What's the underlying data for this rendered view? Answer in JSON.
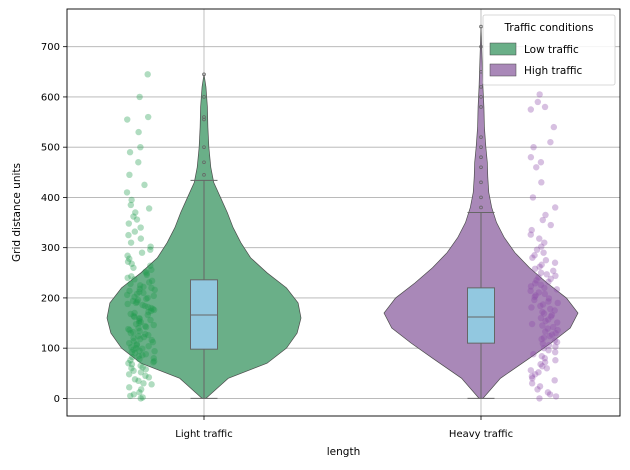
{
  "chart_data": {
    "type": "violin",
    "title": "",
    "xlabel": "length",
    "ylabel": "Grid distance units",
    "categories": [
      "Light traffic",
      "Heavy traffic"
    ],
    "ylim": [
      -35,
      775
    ],
    "yticks": [
      0,
      100,
      200,
      300,
      400,
      500,
      600,
      700
    ],
    "grid": true,
    "legend": {
      "title": "Traffic conditions",
      "placement": "top-right",
      "entries": [
        {
          "label": "Low traffic",
          "color": "#6aaf88"
        },
        {
          "label": "High traffic",
          "color": "#a988b8"
        }
      ]
    },
    "series": [
      {
        "category": "Light traffic",
        "legend_label": "Low traffic",
        "fill": "#6aaf88",
        "point_color": "#1e9a4a",
        "violin_profile": [
          [
            0,
            0.02
          ],
          [
            40,
            0.25
          ],
          [
            70,
            0.65
          ],
          [
            100,
            0.85
          ],
          [
            130,
            0.96
          ],
          [
            160,
            1.0
          ],
          [
            190,
            0.97
          ],
          [
            220,
            0.85
          ],
          [
            250,
            0.65
          ],
          [
            280,
            0.48
          ],
          [
            310,
            0.38
          ],
          [
            340,
            0.3
          ],
          [
            370,
            0.24
          ],
          [
            400,
            0.17
          ],
          [
            430,
            0.1
          ],
          [
            460,
            0.07
          ],
          [
            500,
            0.05
          ],
          [
            540,
            0.04
          ],
          [
            580,
            0.035
          ],
          [
            620,
            0.02
          ],
          [
            645,
            0
          ]
        ],
        "box": {
          "q1": 98,
          "median": 166,
          "q3": 236,
          "whisker_low": 0,
          "whisker_high": 434
        },
        "outliers": [
          445,
          470,
          500,
          555,
          560,
          600,
          645
        ],
        "strip_points": [
          0,
          2,
          5,
          8,
          12,
          18,
          22,
          28,
          30,
          35,
          38,
          42,
          45,
          48,
          52,
          55,
          58,
          60,
          62,
          65,
          68,
          70,
          72,
          74,
          76,
          78,
          80,
          82,
          84,
          86,
          88,
          90,
          92,
          94,
          95,
          97,
          99,
          100,
          102,
          104,
          106,
          108,
          110,
          112,
          114,
          116,
          118,
          120,
          122,
          124,
          126,
          128,
          130,
          132,
          134,
          136,
          138,
          140,
          142,
          144,
          146,
          148,
          150,
          152,
          154,
          156,
          158,
          160,
          162,
          164,
          166,
          168,
          170,
          172,
          174,
          176,
          178,
          180,
          182,
          184,
          186,
          188,
          190,
          192,
          194,
          196,
          198,
          200,
          202,
          204,
          206,
          208,
          210,
          212,
          214,
          216,
          218,
          220,
          222,
          225,
          228,
          231,
          234,
          237,
          240,
          243,
          246,
          249,
          252,
          256,
          260,
          264,
          268,
          272,
          278,
          284,
          290,
          296,
          302,
          310,
          318,
          325,
          332,
          340,
          348,
          356,
          362,
          370,
          378,
          385,
          395,
          410,
          425,
          445,
          470,
          490,
          500,
          530,
          555,
          560,
          600,
          645
        ]
      },
      {
        "category": "Heavy traffic",
        "legend_label": "High traffic",
        "fill": "#a988b8",
        "point_color": "#8c4aa8",
        "violin_profile": [
          [
            0,
            0.02
          ],
          [
            40,
            0.2
          ],
          [
            80,
            0.5
          ],
          [
            110,
            0.72
          ],
          [
            140,
            0.92
          ],
          [
            170,
            1.0
          ],
          [
            200,
            0.88
          ],
          [
            230,
            0.68
          ],
          [
            260,
            0.5
          ],
          [
            290,
            0.35
          ],
          [
            320,
            0.24
          ],
          [
            350,
            0.16
          ],
          [
            380,
            0.11
          ],
          [
            410,
            0.08
          ],
          [
            440,
            0.07
          ],
          [
            470,
            0.065
          ],
          [
            500,
            0.05
          ],
          [
            540,
            0.035
          ],
          [
            580,
            0.03
          ],
          [
            620,
            0.02
          ],
          [
            680,
            0.01
          ],
          [
            740,
            0
          ]
        ],
        "box": {
          "q1": 110,
          "median": 162,
          "q3": 220,
          "whisker_low": 0,
          "whisker_high": 370
        },
        "outliers": [
          380,
          400,
          430,
          460,
          480,
          500,
          520,
          580,
          600,
          620,
          650,
          700,
          740
        ],
        "strip_points": [
          0,
          4,
          8,
          12,
          18,
          24,
          30,
          36,
          40,
          44,
          48,
          52,
          56,
          60,
          64,
          68,
          72,
          76,
          80,
          84,
          88,
          92,
          96,
          100,
          103,
          106,
          109,
          112,
          115,
          118,
          121,
          124,
          127,
          130,
          133,
          136,
          139,
          142,
          145,
          148,
          151,
          154,
          157,
          160,
          163,
          166,
          169,
          172,
          175,
          178,
          181,
          184,
          187,
          190,
          193,
          196,
          199,
          202,
          205,
          208,
          211,
          214,
          217,
          220,
          223,
          226,
          229,
          232,
          235,
          238,
          241,
          244,
          247,
          250,
          254,
          258,
          262,
          266,
          270,
          275,
          280,
          285,
          290,
          296,
          302,
          310,
          318,
          326,
          335,
          345,
          355,
          365,
          380,
          400,
          430,
          460,
          470,
          480,
          500,
          510,
          540,
          575,
          580,
          590,
          605
        ]
      }
    ]
  }
}
